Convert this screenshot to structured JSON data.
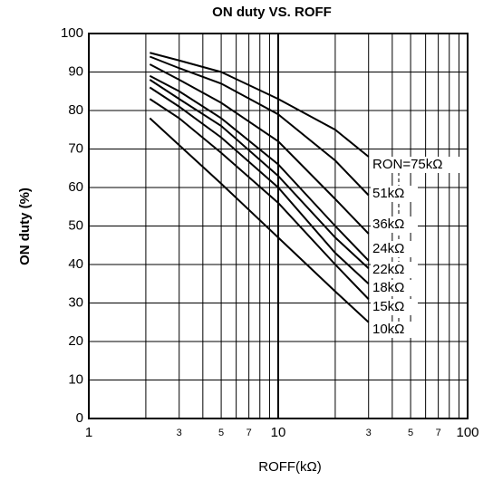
{
  "chart_data": {
    "type": "line",
    "title": "ON duty VS. ROFF",
    "xlabel": "ROFF(kΩ)",
    "ylabel": "ON duty (%)",
    "xscale": "log",
    "xlim": [
      1,
      100
    ],
    "ylim": [
      0,
      100
    ],
    "xticks": [
      1,
      {
        "value": 3,
        "label": "3"
      },
      {
        "value": 5,
        "label": "5"
      },
      {
        "value": 7,
        "label": "7"
      },
      10,
      {
        "value": 30,
        "label": "3"
      },
      {
        "value": 50,
        "label": "5"
      },
      {
        "value": 70,
        "label": "7"
      },
      100
    ],
    "xminor_grid": [
      2,
      4,
      6,
      8,
      9,
      20,
      40,
      60,
      80,
      90
    ],
    "yticks": [
      0,
      10,
      20,
      30,
      40,
      50,
      60,
      70,
      80,
      90,
      100
    ],
    "grid": true,
    "x": [
      2.1,
      3,
      5,
      10,
      20,
      30
    ],
    "series": [
      {
        "name": "RON=75kΩ",
        "color": "#000000",
        "values": [
          95,
          93,
          90,
          83,
          75,
          68
        ]
      },
      {
        "name": "51kΩ",
        "color": "#000000",
        "values": [
          94,
          91,
          87,
          79,
          67,
          58
        ]
      },
      {
        "name": "36kΩ",
        "color": "#000000",
        "values": [
          92,
          88,
          82,
          72,
          57,
          48
        ]
      },
      {
        "name": "24kΩ",
        "color": "#000000",
        "values": [
          89,
          85,
          78,
          66,
          50,
          41
        ]
      },
      {
        "name": "22kΩ",
        "color": "#000000",
        "values": [
          88,
          83,
          76,
          63,
          47,
          39
        ]
      },
      {
        "name": "18kΩ",
        "color": "#000000",
        "values": [
          86,
          81,
          73,
          60,
          43,
          35
        ]
      },
      {
        "name": "15kΩ",
        "color": "#000000",
        "values": [
          83,
          78,
          69,
          56,
          40,
          31
        ]
      },
      {
        "name": "10kΩ",
        "color": "#000000",
        "values": [
          78,
          71,
          61,
          47,
          33,
          25
        ]
      }
    ]
  }
}
